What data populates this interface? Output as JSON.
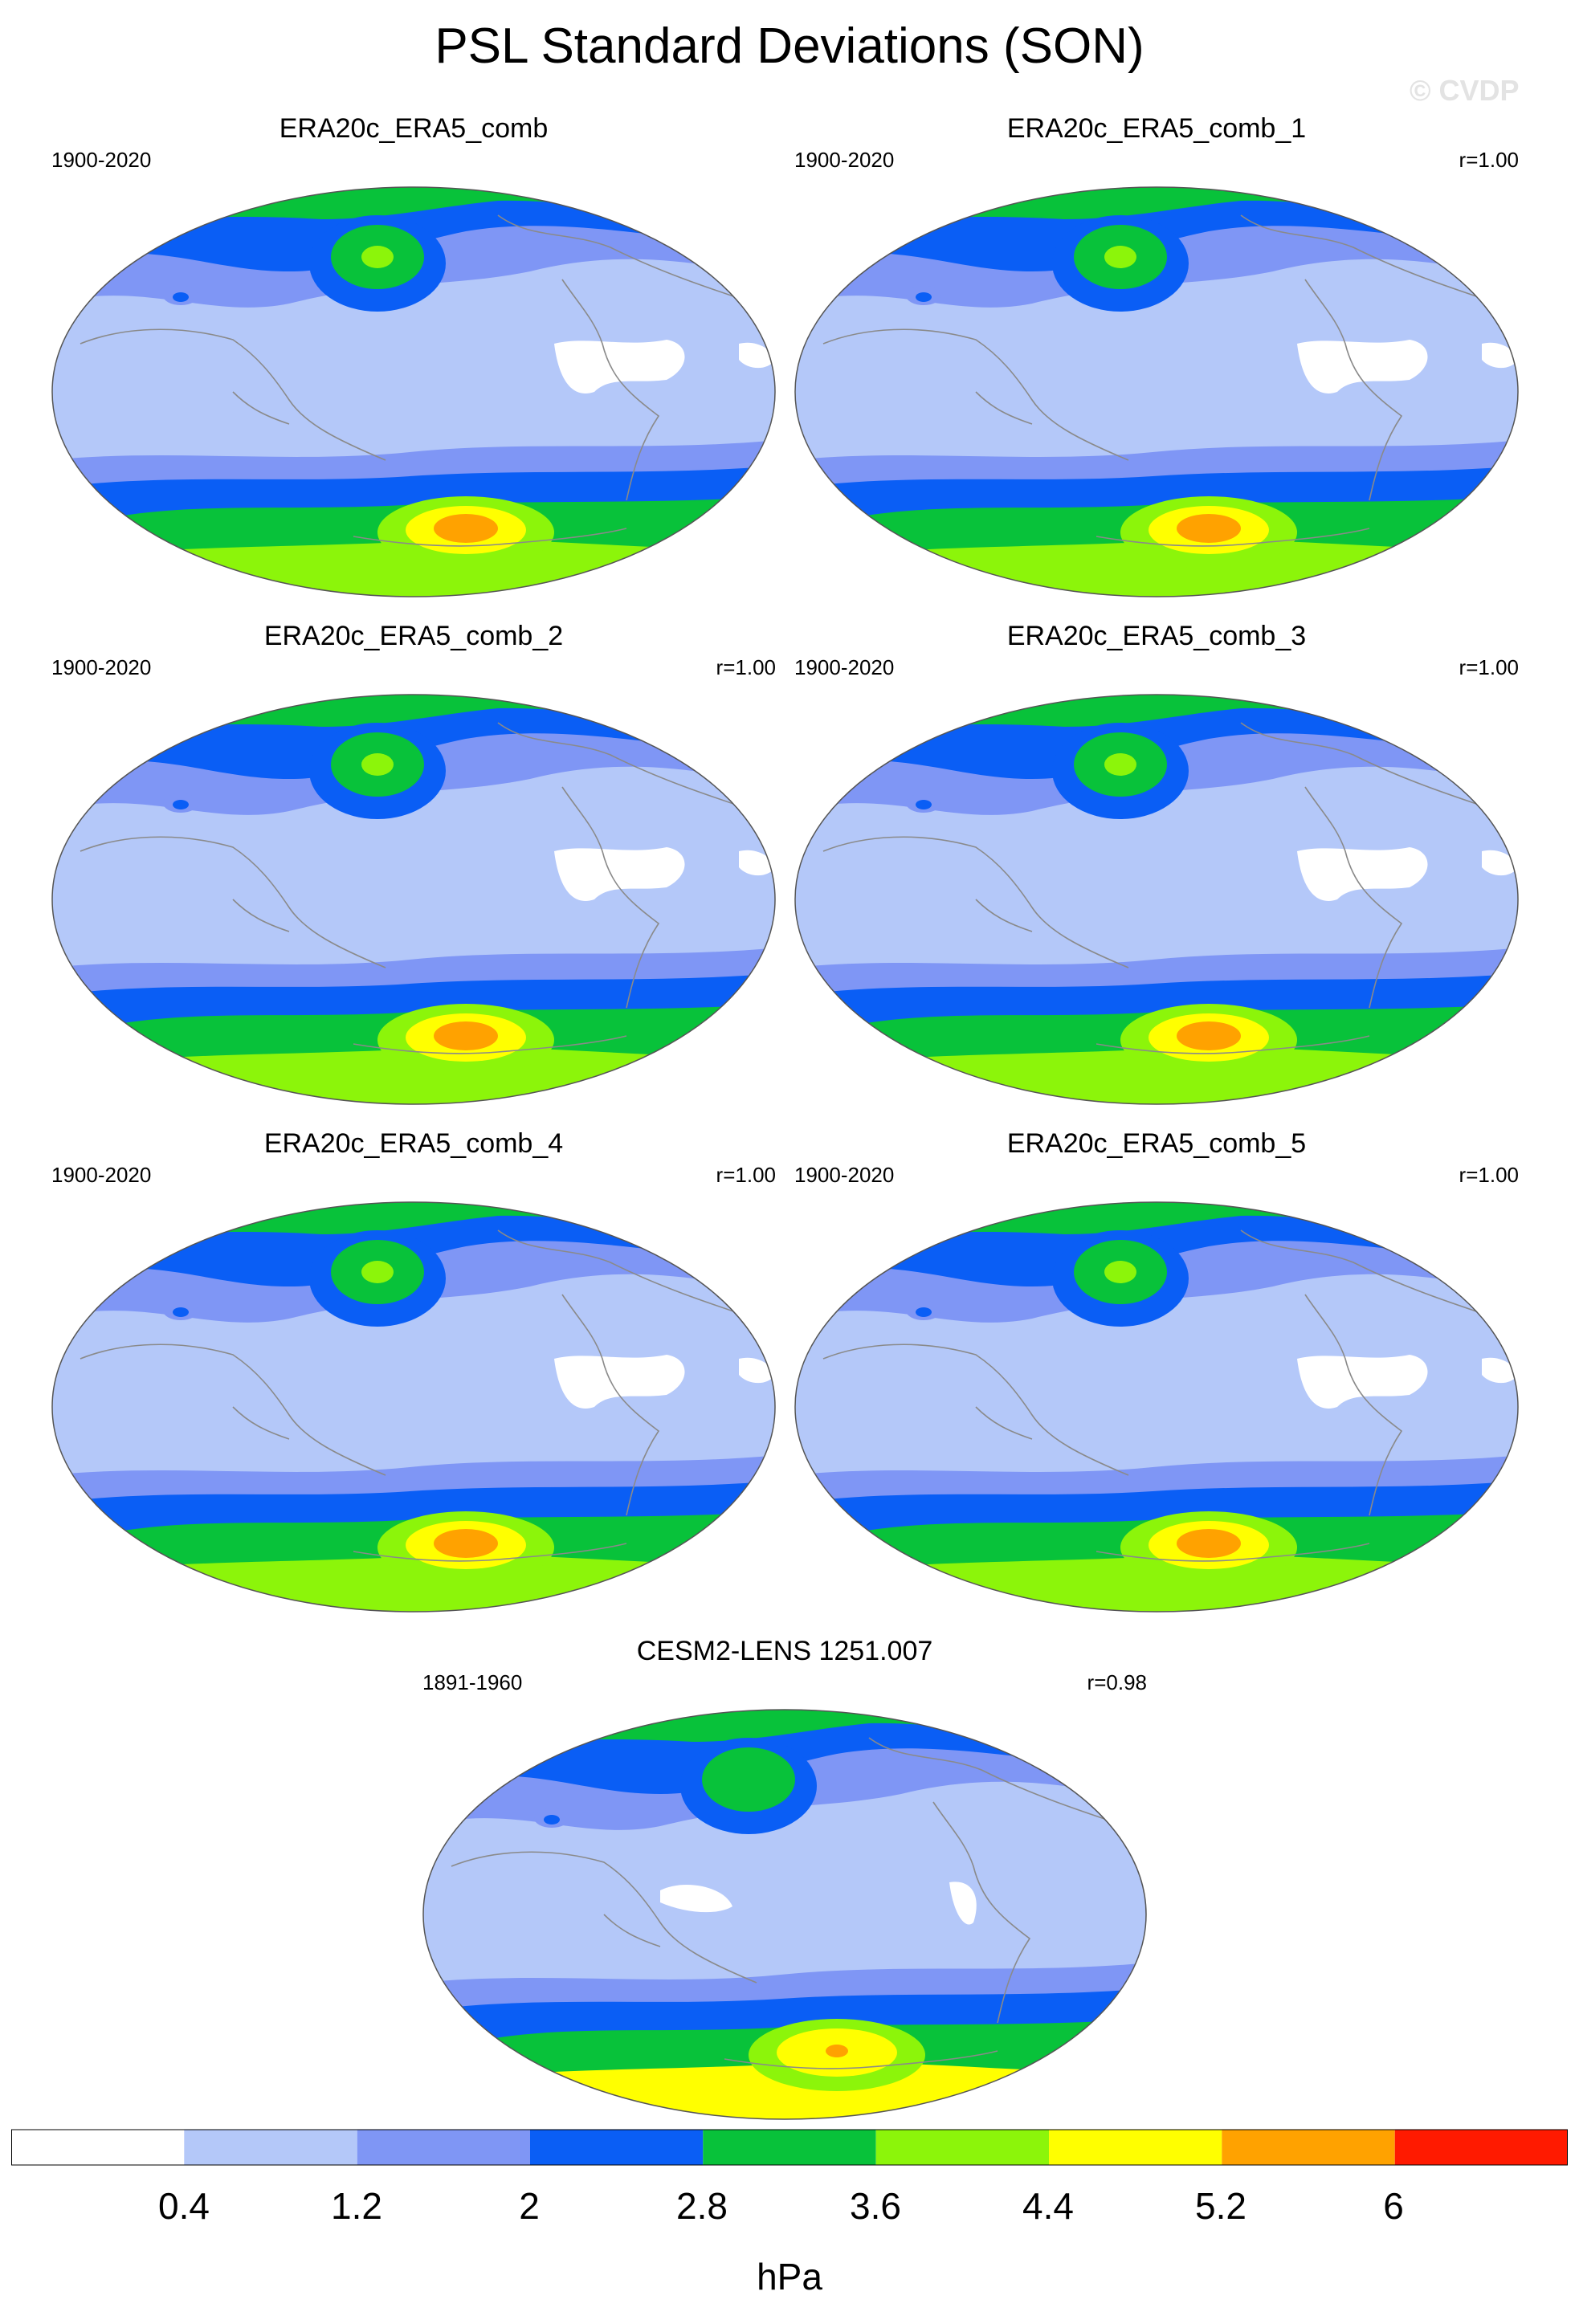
{
  "title": "PSL Standard Deviations (SON)",
  "watermark": "© CVDP",
  "panels": [
    {
      "name": "ERA20c_ERA5_comb",
      "period": "1900-2020",
      "r": ""
    },
    {
      "name": "ERA20c_ERA5_comb_1",
      "period": "1900-2020",
      "r": "r=1.00"
    },
    {
      "name": "ERA20c_ERA5_comb_2",
      "period": "1900-2020",
      "r": "r=1.00"
    },
    {
      "name": "ERA20c_ERA5_comb_3",
      "period": "1900-2020",
      "r": "r=1.00"
    },
    {
      "name": "ERA20c_ERA5_comb_4",
      "period": "1900-2020",
      "r": "r=1.00"
    },
    {
      "name": "ERA20c_ERA5_comb_5",
      "period": "1900-2020",
      "r": "r=1.00"
    },
    {
      "name": "CESM2-LENS 1251.007",
      "period": "1891-1960",
      "r": "r=0.98"
    }
  ],
  "colorbar": {
    "unit": "hPa",
    "ticks": [
      "0.4",
      "1.2",
      "2",
      "2.8",
      "3.6",
      "4.4",
      "5.2",
      "6"
    ],
    "colors": [
      "#ffffff",
      "#b4c8f9",
      "#7f96f5",
      "#0a5ef5",
      "#08c23a",
      "#8cf50a",
      "#ffff00",
      "#ffa200",
      "#ff1a00"
    ]
  }
}
